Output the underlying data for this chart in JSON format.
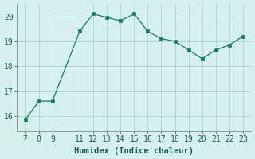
{
  "x": [
    7,
    8,
    9,
    11,
    12,
    13,
    14,
    15,
    16,
    17,
    18,
    19,
    20,
    21,
    22,
    23
  ],
  "y": [
    15.85,
    16.6,
    16.6,
    19.4,
    20.1,
    19.95,
    19.82,
    20.1,
    19.4,
    19.1,
    19.0,
    18.65,
    18.3,
    18.65,
    18.85,
    19.2
  ],
  "line_color": "#1a7a65",
  "marker_color": "#1a7a65",
  "bg_color": "#d5f0ed",
  "grid_color": "#b0d8d4",
  "spine_color": "#888888",
  "xlabel": "Humidex (Indice chaleur)",
  "xticks": [
    7,
    8,
    9,
    11,
    12,
    13,
    14,
    15,
    16,
    17,
    18,
    19,
    20,
    21,
    22,
    23
  ],
  "yticks": [
    16,
    17,
    18,
    19,
    20
  ],
  "ylim": [
    15.4,
    20.5
  ],
  "xlim": [
    6.4,
    23.6
  ],
  "xlabel_fontsize": 7.5,
  "tick_fontsize": 7
}
